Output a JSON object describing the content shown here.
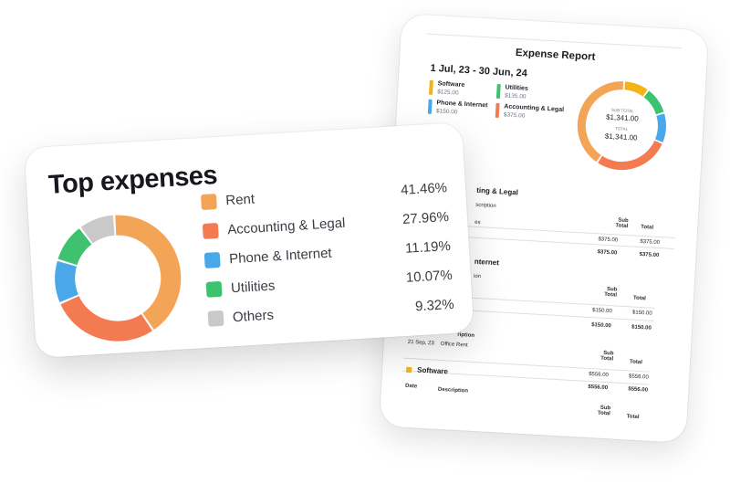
{
  "report": {
    "title": "Expense Report",
    "period": "1 Jul, 23 - 30 Jun, 24",
    "legend": [
      {
        "name": "Software",
        "amount": "$125.00",
        "color": "#f2b417"
      },
      {
        "name": "Utilities",
        "amount": "$135.00",
        "color": "#3ec26f"
      },
      {
        "name": "Phone & Internet",
        "amount": "$150.00",
        "color": "#4aa8ea"
      },
      {
        "name": "Accounting & Legal",
        "amount": "$375.00",
        "color": "#f47a52"
      }
    ],
    "donut": {
      "sub_total_label": "SUB TOTAL",
      "sub_total_value": "$1,341.00",
      "total_label": "TOTAL",
      "total_value": "$1,341.00"
    },
    "sections": [
      {
        "title": "ting & Legal",
        "col_desc": "scription",
        "row_desc": "es",
        "col_sub": "Sub\nTotal",
        "col_total": "Total",
        "sub": "$375.00",
        "total": "$375.00",
        "sum_sub": "$375.00",
        "sum_total": "$375.00"
      },
      {
        "title": "nternet",
        "col_desc": "ion",
        "col_sub": "Sub\nTotal",
        "col_total": "Total",
        "sub": "$150.00",
        "total": "$150.00",
        "sum_sub": "$150.00",
        "sum_total": "$150.00"
      },
      {
        "col_desc": "ription",
        "date": "21 Sep, 23",
        "row_desc": "Office Rent",
        "col_sub": "Sub\nTotal",
        "col_total": "Total",
        "sub": "$556.00",
        "total": "$556.00",
        "sum_sub": "$556.00",
        "sum_total": "$556.00"
      },
      {
        "title": "Software",
        "col_date": "Date",
        "col_desc": "Description",
        "col_sub": "Sub\nTotal",
        "col_total": "Total"
      }
    ]
  },
  "top_expenses": {
    "title": "Top expenses",
    "items": [
      {
        "name": "Rent",
        "percent": "41.46%",
        "value": 41.46,
        "color": "#f4a456"
      },
      {
        "name": "Accounting & Legal",
        "percent": "27.96%",
        "value": 27.96,
        "color": "#f47a52"
      },
      {
        "name": "Phone & Internet",
        "percent": "11.19%",
        "value": 11.19,
        "color": "#4aa8ea"
      },
      {
        "name": "Utilities",
        "percent": "10.07%",
        "value": 10.07,
        "color": "#3ec26f"
      },
      {
        "name": "Others",
        "percent": "9.32%",
        "value": 9.32,
        "color": "#c9c9c9"
      }
    ]
  }
}
